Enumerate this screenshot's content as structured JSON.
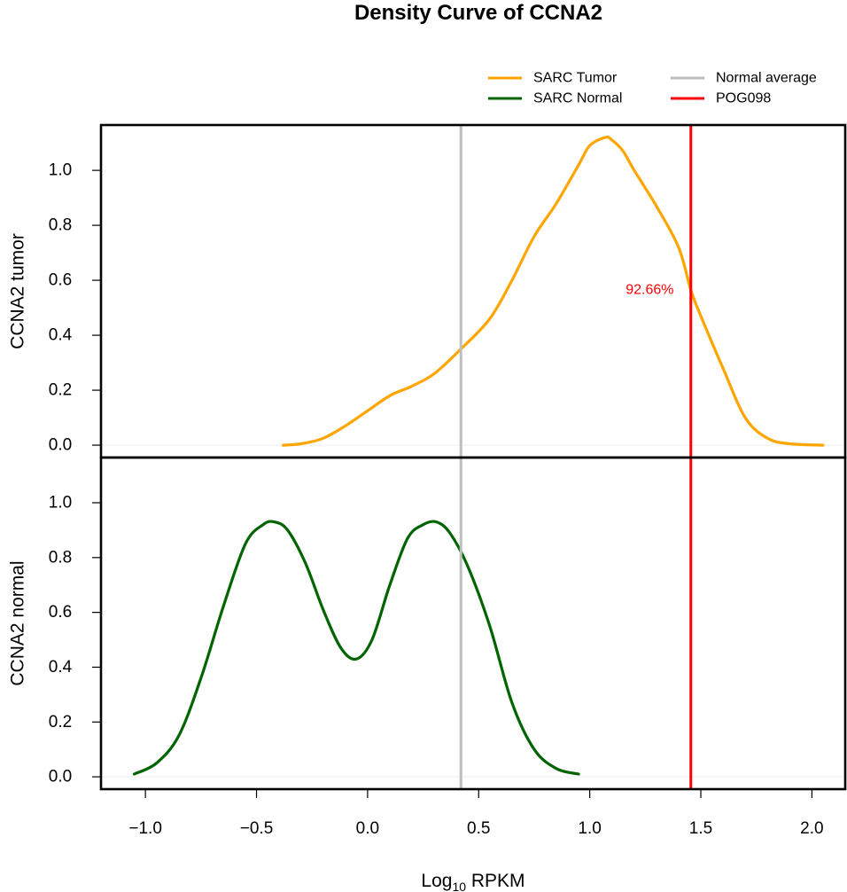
{
  "chart_data": {
    "type": "line",
    "title": "Density Curve of  CCNA2",
    "xlabel_main": "Log",
    "xlabel_sub": "10",
    "xlabel_rest": " RPKM",
    "xlim": [
      -1.2,
      2.15
    ],
    "x_ticks": [
      -1.0,
      -0.5,
      0.0,
      0.5,
      1.0,
      1.5,
      2.0
    ],
    "x_tick_labels": [
      "−1.0",
      "−0.5",
      "0.0",
      "0.5",
      "1.0",
      "1.5",
      "2.0"
    ],
    "y_ticks": [
      0.0,
      0.2,
      0.4,
      0.6,
      0.8,
      1.0
    ],
    "y_tick_labels": [
      "0.0",
      "0.2",
      "0.4",
      "0.6",
      "0.8",
      "1.0"
    ],
    "colors": {
      "tumor": "#FFA500",
      "normal": "#006400",
      "normal_average": "#BEBEBE",
      "sample": "#FF0000"
    },
    "legend": {
      "placement": "top-right",
      "entries": [
        {
          "key": "tumor",
          "label": "SARC  Tumor"
        },
        {
          "key": "normal",
          "label": "SARC  Normal"
        },
        {
          "key": "normal_average",
          "label": "Normal  average"
        },
        {
          "key": "sample",
          "label": "POG098"
        }
      ]
    },
    "vlines": {
      "normal_average": 0.42,
      "sample": 1.455
    },
    "percentile_label": "92.66%",
    "percentile_label_pos": {
      "x": 1.27,
      "y": 0.565
    },
    "panels": [
      {
        "id": "tumor",
        "ylabel": "CCNA2  tumor",
        "ylim": [
          -0.045,
          1.165
        ],
        "series": {
          "name": "SARC  Tumor",
          "x": [
            -0.38,
            -0.3,
            -0.2,
            -0.1,
            0.0,
            0.1,
            0.2,
            0.3,
            0.42,
            0.55,
            0.65,
            0.75,
            0.85,
            0.95,
            1.0,
            1.07,
            1.1,
            1.15,
            1.2,
            1.3,
            1.4,
            1.455,
            1.5,
            1.6,
            1.7,
            1.8,
            1.9,
            2.05
          ],
          "y": [
            0.0,
            0.005,
            0.025,
            0.07,
            0.125,
            0.18,
            0.215,
            0.26,
            0.35,
            0.46,
            0.6,
            0.76,
            0.88,
            1.02,
            1.09,
            1.12,
            1.11,
            1.07,
            1.0,
            0.87,
            0.72,
            0.565,
            0.47,
            0.28,
            0.1,
            0.025,
            0.005,
            0.0
          ]
        }
      },
      {
        "id": "normal",
        "ylabel": "CCNA2  normal",
        "ylim": [
          -0.045,
          1.165
        ],
        "series": {
          "name": "SARC  Normal",
          "x": [
            -1.05,
            -0.95,
            -0.85,
            -0.75,
            -0.65,
            -0.55,
            -0.47,
            -0.42,
            -0.36,
            -0.28,
            -0.2,
            -0.12,
            -0.05,
            0.02,
            0.1,
            0.18,
            0.25,
            0.31,
            0.37,
            0.45,
            0.55,
            0.65,
            0.75,
            0.85,
            0.95
          ],
          "y": [
            0.01,
            0.05,
            0.15,
            0.36,
            0.62,
            0.85,
            0.92,
            0.93,
            0.9,
            0.78,
            0.61,
            0.47,
            0.43,
            0.5,
            0.7,
            0.87,
            0.92,
            0.93,
            0.89,
            0.77,
            0.55,
            0.27,
            0.1,
            0.03,
            0.01
          ]
        }
      }
    ]
  }
}
